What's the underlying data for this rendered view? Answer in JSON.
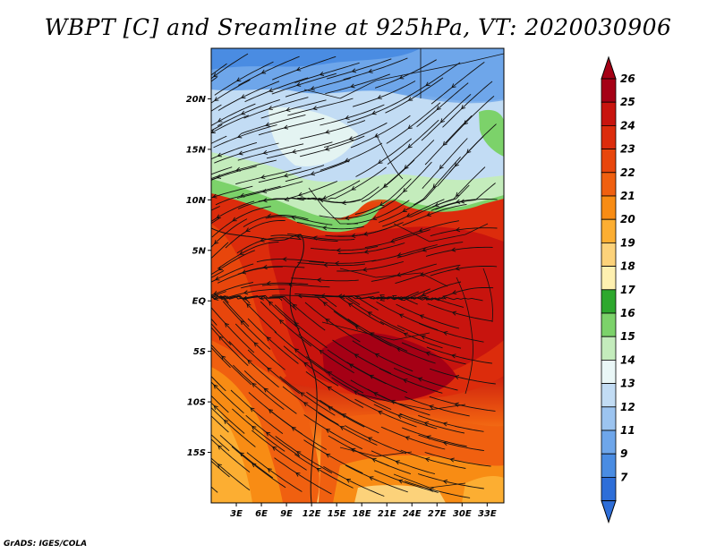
{
  "title": "WBPT [C] and Sreamline at 925hPa, VT: 2020030906",
  "credit": "GrADS: IGES/COLA",
  "map": {
    "lon_range": [
      0,
      35
    ],
    "lat_range": [
      -20,
      25
    ],
    "lat_ticks": [
      {
        "value": 20,
        "label": "20N"
      },
      {
        "value": 15,
        "label": "15N"
      },
      {
        "value": 10,
        "label": "10N"
      },
      {
        "value": 5,
        "label": "5N"
      },
      {
        "value": 0,
        "label": "EQ"
      },
      {
        "value": -5,
        "label": "5S"
      },
      {
        "value": -10,
        "label": "10S"
      },
      {
        "value": -15,
        "label": "15S"
      }
    ],
    "lon_ticks": [
      {
        "value": 3,
        "label": "3E"
      },
      {
        "value": 6,
        "label": "6E"
      },
      {
        "value": 9,
        "label": "9E"
      },
      {
        "value": 12,
        "label": "12E"
      },
      {
        "value": 15,
        "label": "15E"
      },
      {
        "value": 18,
        "label": "18E"
      },
      {
        "value": 21,
        "label": "21E"
      },
      {
        "value": 24,
        "label": "24E"
      },
      {
        "value": 27,
        "label": "27E"
      },
      {
        "value": 30,
        "label": "30E"
      },
      {
        "value": 33,
        "label": "33E"
      }
    ]
  },
  "colorbar": {
    "labels": [
      "26",
      "25",
      "24",
      "23",
      "22",
      "21",
      "20",
      "19",
      "18",
      "17",
      "16",
      "15",
      "14",
      "13",
      "12",
      "11",
      "9",
      "7"
    ],
    "colors": [
      "#a50015",
      "#c8140e",
      "#dc2c0c",
      "#e8460c",
      "#f06010",
      "#f88c14",
      "#fcae32",
      "#fcd27a",
      "#fef0b0",
      "#2ea82e",
      "#7cd26a",
      "#c4ecbc",
      "#eaf7f7",
      "#c2dcf4",
      "#9cc4f0",
      "#6ea6ea",
      "#4a8ce2",
      "#2e6ed8"
    ],
    "arrow_top_color": "#a50015",
    "arrow_bottom_color": "#2e6ed8"
  }
}
